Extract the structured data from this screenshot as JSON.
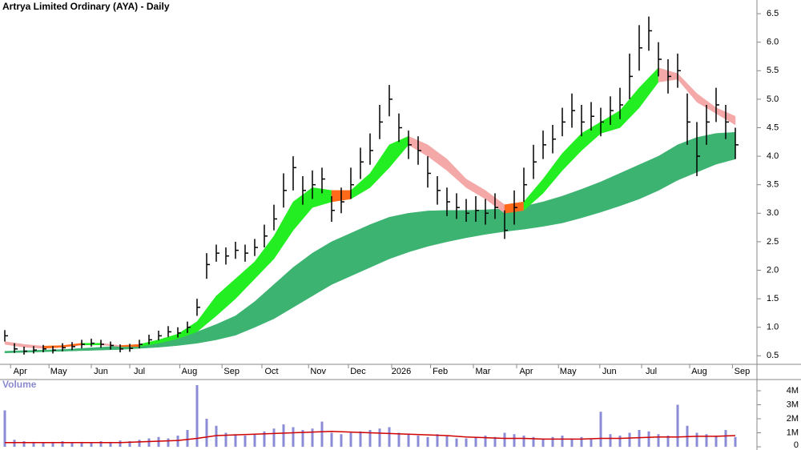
{
  "chart_data": [
    {
      "type": "ohlc",
      "title": "Artrya Limited Ordinary (AYA) - Daily",
      "color": "#000000",
      "high": [
        0.95,
        0.72,
        0.66,
        0.67,
        0.69,
        0.67,
        0.72,
        0.74,
        0.78,
        0.8,
        0.78,
        0.75,
        0.7,
        0.71,
        0.78,
        0.87,
        0.94,
        1.02,
        1.0,
        1.1,
        1.5,
        2.3,
        2.45,
        2.4,
        2.5,
        2.45,
        2.55,
        2.8,
        3.15,
        3.7,
        4.0,
        3.65,
        3.75,
        3.8,
        3.3,
        3.45,
        3.8,
        4.15,
        4.4,
        4.9,
        5.25,
        4.75,
        4.45,
        4.35,
        4.0,
        3.65,
        3.45,
        3.35,
        3.25,
        3.3,
        3.25,
        3.35,
        3.05,
        3.4,
        3.8,
        4.2,
        4.45,
        4.55,
        4.85,
        5.1,
        4.9,
        4.95,
        4.85,
        5.05,
        5.2,
        5.8,
        6.3,
        6.45,
        6.0,
        5.7,
        5.8,
        5.1,
        4.6,
        4.9,
        5.2,
        4.9,
        4.5
      ],
      "low": [
        0.75,
        0.55,
        0.52,
        0.54,
        0.56,
        0.54,
        0.58,
        0.6,
        0.63,
        0.66,
        0.64,
        0.61,
        0.56,
        0.57,
        0.63,
        0.7,
        0.77,
        0.83,
        0.82,
        0.9,
        1.2,
        1.85,
        2.15,
        2.1,
        2.2,
        2.15,
        2.25,
        2.4,
        2.7,
        3.1,
        3.4,
        3.15,
        3.25,
        3.35,
        2.85,
        3.0,
        3.25,
        3.6,
        3.85,
        4.3,
        4.7,
        4.25,
        3.95,
        3.85,
        3.45,
        3.15,
        2.95,
        2.9,
        2.85,
        2.85,
        2.8,
        2.9,
        2.55,
        2.8,
        3.2,
        3.6,
        3.95,
        4.05,
        4.35,
        4.5,
        4.35,
        4.45,
        4.35,
        4.55,
        4.65,
        5.0,
        5.5,
        5.85,
        5.4,
        5.1,
        5.2,
        4.2,
        3.65,
        4.2,
        4.6,
        4.3,
        3.95
      ],
      "close": [
        0.85,
        0.62,
        0.58,
        0.6,
        0.62,
        0.6,
        0.64,
        0.66,
        0.7,
        0.72,
        0.7,
        0.68,
        0.62,
        0.63,
        0.7,
        0.78,
        0.85,
        0.92,
        0.9,
        1.0,
        1.35,
        2.1,
        2.3,
        2.25,
        2.35,
        2.3,
        2.4,
        2.6,
        2.9,
        3.4,
        3.8,
        3.4,
        3.5,
        3.6,
        3.05,
        3.2,
        3.5,
        3.9,
        4.1,
        4.6,
        5.0,
        4.5,
        4.2,
        4.1,
        3.7,
        3.4,
        3.2,
        3.1,
        3.0,
        3.05,
        3.0,
        3.1,
        2.7,
        3.1,
        3.5,
        3.9,
        4.2,
        4.3,
        4.6,
        4.8,
        4.6,
        4.7,
        4.6,
        4.8,
        4.9,
        5.4,
        5.9,
        6.2,
        5.7,
        5.4,
        5.5,
        4.6,
        4.0,
        4.6,
        4.9,
        4.6,
        4.2
      ],
      "bands": [
        {
          "x": [
            0,
            2,
            4,
            6,
            8,
            10,
            12,
            14,
            16,
            18,
            20,
            22,
            24,
            26,
            28,
            30,
            32,
            34,
            36,
            38,
            40,
            42,
            44,
            46,
            48,
            50,
            52,
            54,
            56,
            58,
            60,
            62,
            64,
            66,
            68,
            70,
            72,
            74,
            76
          ],
          "upper": [
            0.58,
            0.59,
            0.6,
            0.61,
            0.63,
            0.65,
            0.67,
            0.7,
            0.75,
            0.82,
            0.92,
            1.05,
            1.2,
            1.45,
            1.75,
            2.05,
            2.3,
            2.5,
            2.65,
            2.8,
            2.93,
            3.0,
            3.04,
            3.05,
            3.05,
            3.06,
            3.08,
            3.12,
            3.2,
            3.3,
            3.42,
            3.55,
            3.7,
            3.85,
            4.0,
            4.2,
            4.33,
            4.4,
            4.42
          ],
          "lower": [
            0.55,
            0.56,
            0.57,
            0.58,
            0.59,
            0.6,
            0.61,
            0.63,
            0.65,
            0.68,
            0.72,
            0.78,
            0.86,
            1.0,
            1.15,
            1.35,
            1.55,
            1.75,
            1.9,
            2.05,
            2.2,
            2.32,
            2.42,
            2.5,
            2.57,
            2.63,
            2.68,
            2.72,
            2.77,
            2.83,
            2.92,
            3.02,
            3.13,
            3.25,
            3.4,
            3.58,
            3.72,
            3.86,
            3.95
          ],
          "color": "#3cb371"
        },
        {
          "x": [
            0,
            2,
            4,
            6,
            8,
            10,
            12,
            14,
            16,
            18,
            20,
            22,
            24,
            26,
            28,
            30,
            32,
            34,
            36,
            38,
            40,
            42,
            44,
            46,
            48,
            50,
            52,
            54,
            56,
            58,
            60,
            62,
            64,
            66,
            68,
            70,
            72,
            74,
            76
          ],
          "upper": [
            0.75,
            0.7,
            0.67,
            0.68,
            0.72,
            0.72,
            0.68,
            0.7,
            0.78,
            0.88,
            1.1,
            1.55,
            1.85,
            2.15,
            2.6,
            3.2,
            3.45,
            3.4,
            3.4,
            3.7,
            4.2,
            4.35,
            4.2,
            3.95,
            3.6,
            3.4,
            3.15,
            3.2,
            3.6,
            4.05,
            4.4,
            4.6,
            4.8,
            5.2,
            5.55,
            5.45,
            5.1,
            4.85,
            4.7
          ],
          "lower": [
            0.7,
            0.65,
            0.63,
            0.65,
            0.69,
            0.69,
            0.66,
            0.66,
            0.72,
            0.8,
            0.92,
            1.2,
            1.5,
            1.85,
            2.2,
            2.7,
            3.1,
            3.2,
            3.25,
            3.45,
            3.8,
            4.2,
            4.0,
            3.75,
            3.45,
            3.25,
            3.0,
            3.05,
            3.35,
            3.75,
            4.1,
            4.4,
            4.5,
            4.85,
            5.3,
            5.35,
            4.95,
            4.75,
            4.55
          ],
          "color": "#22ee22",
          "falling_color": "#f4a8a8",
          "below_color": "#ff6a1a"
        }
      ],
      "xlim": [
        -0.5,
        78.25
      ],
      "xticks": [
        {
          "value": 1.6,
          "label": "Apr"
        },
        {
          "value": 5.6,
          "label": "May"
        },
        {
          "value": 10,
          "label": "Jun"
        },
        {
          "value": 14,
          "label": "Jul"
        },
        {
          "value": 19.2,
          "label": "Aug"
        },
        {
          "value": 23.6,
          "label": "Sep"
        },
        {
          "value": 27.75,
          "label": "Oct"
        },
        {
          "value": 32.6,
          "label": "Nov"
        },
        {
          "value": 36.75,
          "label": "Dec"
        },
        {
          "value": 41.25,
          "label": "2026"
        },
        {
          "value": 45.3,
          "label": "Feb"
        },
        {
          "value": 49.75,
          "label": "Mar"
        },
        {
          "value": 54.25,
          "label": "Apr"
        },
        {
          "value": 58.6,
          "label": "May"
        },
        {
          "value": 62.9,
          "label": "Jun"
        },
        {
          "value": 67.25,
          "label": "Jul"
        },
        {
          "value": 72.25,
          "label": "Aug"
        },
        {
          "value": 76.7,
          "label": "Sep"
        }
      ],
      "ylim": [
        0.35,
        6.74
      ],
      "yticks": [
        0.5,
        {
          "value": 1,
          "label": "1.0"
        },
        1.5,
        {
          "value": 2,
          "label": "2.0"
        },
        2.5,
        {
          "value": 3,
          "label": "3.0"
        },
        3.5,
        {
          "value": 4,
          "label": "4.0"
        },
        4.5,
        {
          "value": 5,
          "label": "5.0"
        },
        5.5,
        {
          "value": 6,
          "label": "6.0"
        },
        6.5
      ]
    },
    {
      "type": "bar",
      "title": "Volume",
      "color": "#8c8cd6",
      "values": [
        2600000,
        500000,
        400000,
        350000,
        300000,
        350000,
        400000,
        300000,
        350000,
        300000,
        400000,
        350000,
        450000,
        400000,
        500000,
        600000,
        700000,
        600000,
        800000,
        1200000,
        4400000,
        2000000,
        1500000,
        1000000,
        900000,
        800000,
        900000,
        1100000,
        1300000,
        1600000,
        1400000,
        1200000,
        1300000,
        1800000,
        1000000,
        900000,
        1000000,
        1100000,
        1200000,
        1300000,
        1400000,
        1000000,
        900000,
        800000,
        700000,
        900000,
        800000,
        600000,
        600000,
        700000,
        800000,
        700000,
        1000000,
        900000,
        800000,
        700000,
        600000,
        700000,
        800000,
        600000,
        700000,
        600000,
        2500000,
        900000,
        800000,
        1000000,
        1200000,
        1100000,
        900000,
        800000,
        3000000,
        1500000,
        1000000,
        900000,
        800000,
        1200000,
        700000
      ],
      "lines": [
        {
          "x": [
            0,
            2,
            4,
            6,
            8,
            10,
            12,
            14,
            16,
            18,
            20,
            22,
            24,
            26,
            28,
            30,
            32,
            34,
            36,
            38,
            40,
            42,
            44,
            46,
            48,
            50,
            52,
            54,
            56,
            58,
            60,
            62,
            64,
            66,
            68,
            70,
            72,
            74,
            76
          ],
          "values": [
            300000,
            300000,
            300000,
            300000,
            300000,
            300000,
            300000,
            350000,
            400000,
            450000,
            600000,
            800000,
            850000,
            900000,
            950000,
            1000000,
            1050000,
            1100000,
            1050000,
            1000000,
            950000,
            900000,
            850000,
            800000,
            700000,
            650000,
            600000,
            600000,
            550000,
            550000,
            550000,
            600000,
            600000,
            650000,
            700000,
            700000,
            750000,
            750000,
            800000
          ],
          "color": "#d00000"
        }
      ],
      "xlim": [
        -0.5,
        78.25
      ],
      "ylim": [
        0,
        4800000
      ],
      "yticks": [
        0,
        {
          "value": 1000000,
          "label": "1M"
        },
        {
          "value": 2000000,
          "label": "2M"
        },
        {
          "value": 3000000,
          "label": "3M"
        },
        {
          "value": 4000000,
          "label": "4M"
        }
      ]
    }
  ]
}
